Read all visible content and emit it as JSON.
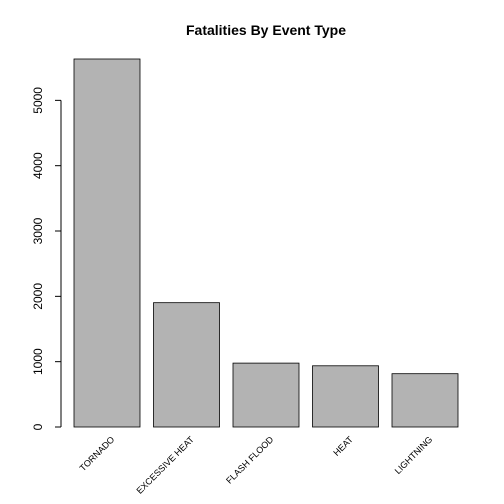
{
  "chart_data": {
    "type": "bar",
    "title": "Fatalities By Event Type",
    "xlabel": "",
    "ylabel": "",
    "categories": [
      "TORNADO",
      "EXCESSIVE HEAT",
      "FLASH FLOOD",
      "HEAT",
      "LIGHTNING"
    ],
    "values": [
      5633,
      1903,
      978,
      937,
      816
    ],
    "yticks": [
      0,
      1000,
      2000,
      3000,
      4000,
      5000
    ],
    "ylim": [
      0,
      5633
    ],
    "bar_color": "#b3b3b3",
    "grid": false,
    "legend": "none"
  }
}
